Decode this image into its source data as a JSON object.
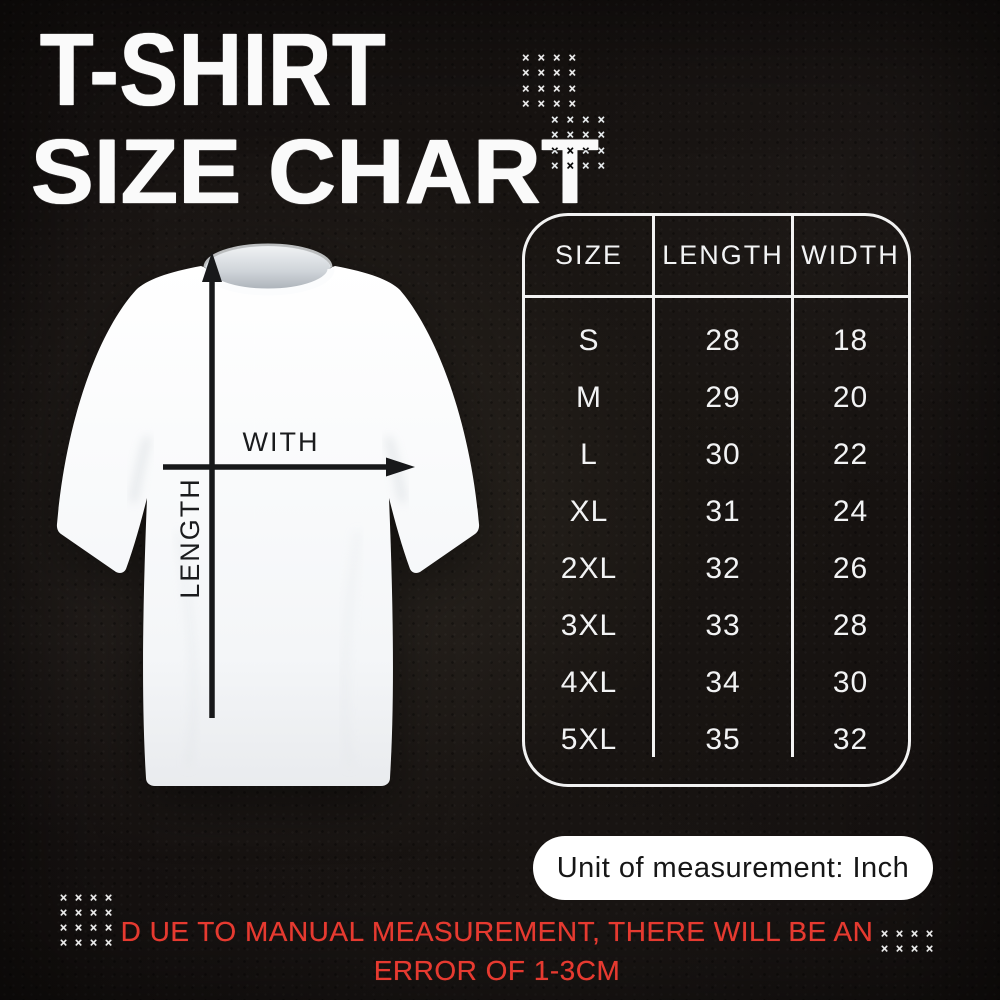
{
  "title": {
    "line1": "T-SHIRT",
    "line2": "SIZE CHART"
  },
  "diagram": {
    "length_label": "LENGTH",
    "width_label": "WITH"
  },
  "size_table": {
    "headers": [
      "SIZE",
      "LENGTH",
      "WIDTH"
    ],
    "rows": [
      [
        "S",
        "28",
        "18"
      ],
      [
        "M",
        "29",
        "20"
      ],
      [
        "L",
        "30",
        "22"
      ],
      [
        "XL",
        "31",
        "24"
      ],
      [
        "2XL",
        "32",
        "26"
      ],
      [
        "3XL",
        "33",
        "28"
      ],
      [
        "4XL",
        "34",
        "30"
      ],
      [
        "5XL",
        "35",
        "32"
      ]
    ]
  },
  "unit_note": "Unit of measurement: Inch",
  "disclaimer": {
    "line1": "D UE TO MANUAL MEASUREMENT, THERE WILL BE AN",
    "line2": "ERROR OF 1-3CM"
  },
  "decor": {
    "patterns": {
      "top_right_a": {
        "cols": 4,
        "rows": 4,
        "glyph": "×"
      },
      "top_right_b": {
        "cols": 4,
        "rows": 4,
        "glyph": "×"
      },
      "bottom_left": {
        "cols": 4,
        "rows": 4,
        "glyph": "×"
      },
      "bottom_right": {
        "cols": 4,
        "rows": 2,
        "glyph": "×"
      }
    }
  },
  "colors": {
    "background": "#151110",
    "title_text": "#fafafa",
    "table_line": "#f2f2f2",
    "accent_red": "#e63a30",
    "pill_bg": "#ffffff",
    "pill_text": "#161616",
    "shirt_white": "#f7f8fa",
    "arrow_black": "#17181a"
  }
}
